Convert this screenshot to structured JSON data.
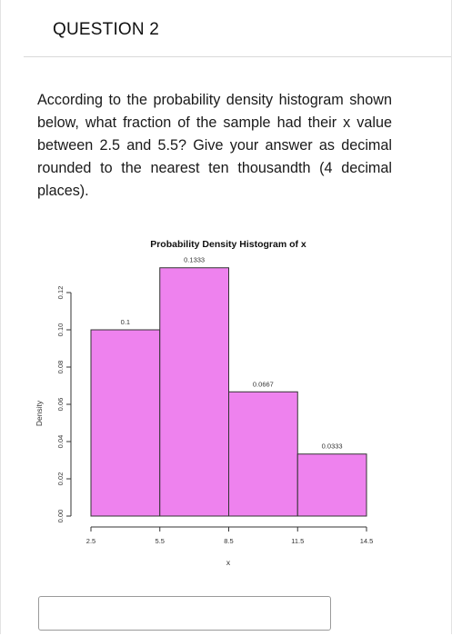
{
  "question": {
    "title": "QUESTION 2",
    "text": "According to the probability density histogram shown below, what fraction of the sample had their x value between 2.5 and 5.5? Give your answer as decimal rounded to the nearest ten thousandth (4 decimal places)."
  },
  "answer": {
    "value": "",
    "placeholder": ""
  },
  "colors": {
    "bar_fill": "#ee82ee",
    "bar_stroke": "#333333"
  },
  "chart_data": {
    "type": "bar",
    "title": "Probability Density Histogram of x",
    "xlabel": "x",
    "ylabel": "Density",
    "bins": [
      [
        2.5,
        5.5
      ],
      [
        5.5,
        8.5
      ],
      [
        8.5,
        11.5
      ],
      [
        11.5,
        14.5
      ]
    ],
    "values": [
      0.1,
      0.1333,
      0.0667,
      0.0333
    ],
    "data_labels": [
      "0.1",
      "0.1333",
      "0.0667",
      "0.0333"
    ],
    "xticks": [
      "2.5",
      "5.5",
      "8.5",
      "11.5",
      "14.5"
    ],
    "yticks": [
      "0.00",
      "0.02",
      "0.04",
      "0.06",
      "0.08",
      "0.10",
      "0.12"
    ],
    "xlim": [
      2.5,
      14.5
    ],
    "ylim": [
      0,
      0.1333
    ],
    "grid": false,
    "legend": "none"
  }
}
